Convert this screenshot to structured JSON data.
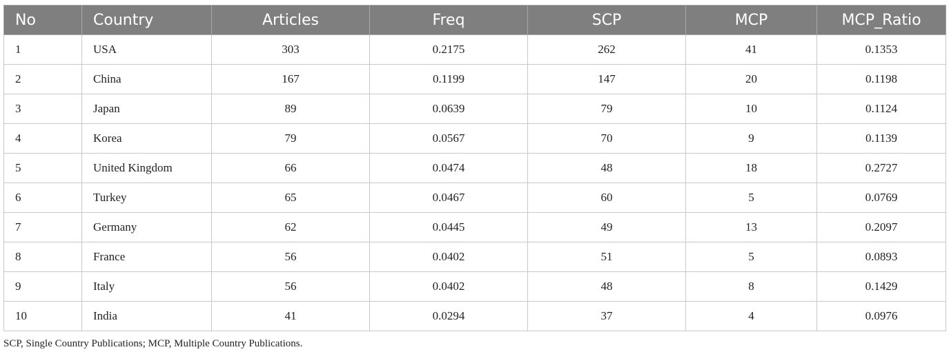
{
  "table": {
    "columns": [
      "No",
      "Country",
      "Articles",
      "Freq",
      "SCP",
      "MCP",
      "MCP_Ratio"
    ],
    "rows": [
      [
        "1",
        "USA",
        "303",
        "0.2175",
        "262",
        "41",
        "0.1353"
      ],
      [
        "2",
        "China",
        "167",
        "0.1199",
        "147",
        "20",
        "0.1198"
      ],
      [
        "3",
        "Japan",
        "89",
        "0.0639",
        "79",
        "10",
        "0.1124"
      ],
      [
        "4",
        "Korea",
        "79",
        "0.0567",
        "70",
        "9",
        "0.1139"
      ],
      [
        "5",
        "United Kingdom",
        "66",
        "0.0474",
        "48",
        "18",
        "0.2727"
      ],
      [
        "6",
        "Turkey",
        "65",
        "0.0467",
        "60",
        "5",
        "0.0769"
      ],
      [
        "7",
        "Germany",
        "62",
        "0.0445",
        "49",
        "13",
        "0.2097"
      ],
      [
        "8",
        "France",
        "56",
        "0.0402",
        "51",
        "5",
        "0.0893"
      ],
      [
        "9",
        "Italy",
        "56",
        "0.0402",
        "48",
        "8",
        "0.1429"
      ],
      [
        "10",
        "India",
        "41",
        "0.0294",
        "37",
        "4",
        "0.0976"
      ]
    ]
  },
  "footnote": "SCP, Single Country Publications; MCP, Multiple Country Publications.",
  "colors": {
    "header_bg": "#7f7f7f",
    "header_text": "#ffffff",
    "border": "#c8c8c8"
  }
}
